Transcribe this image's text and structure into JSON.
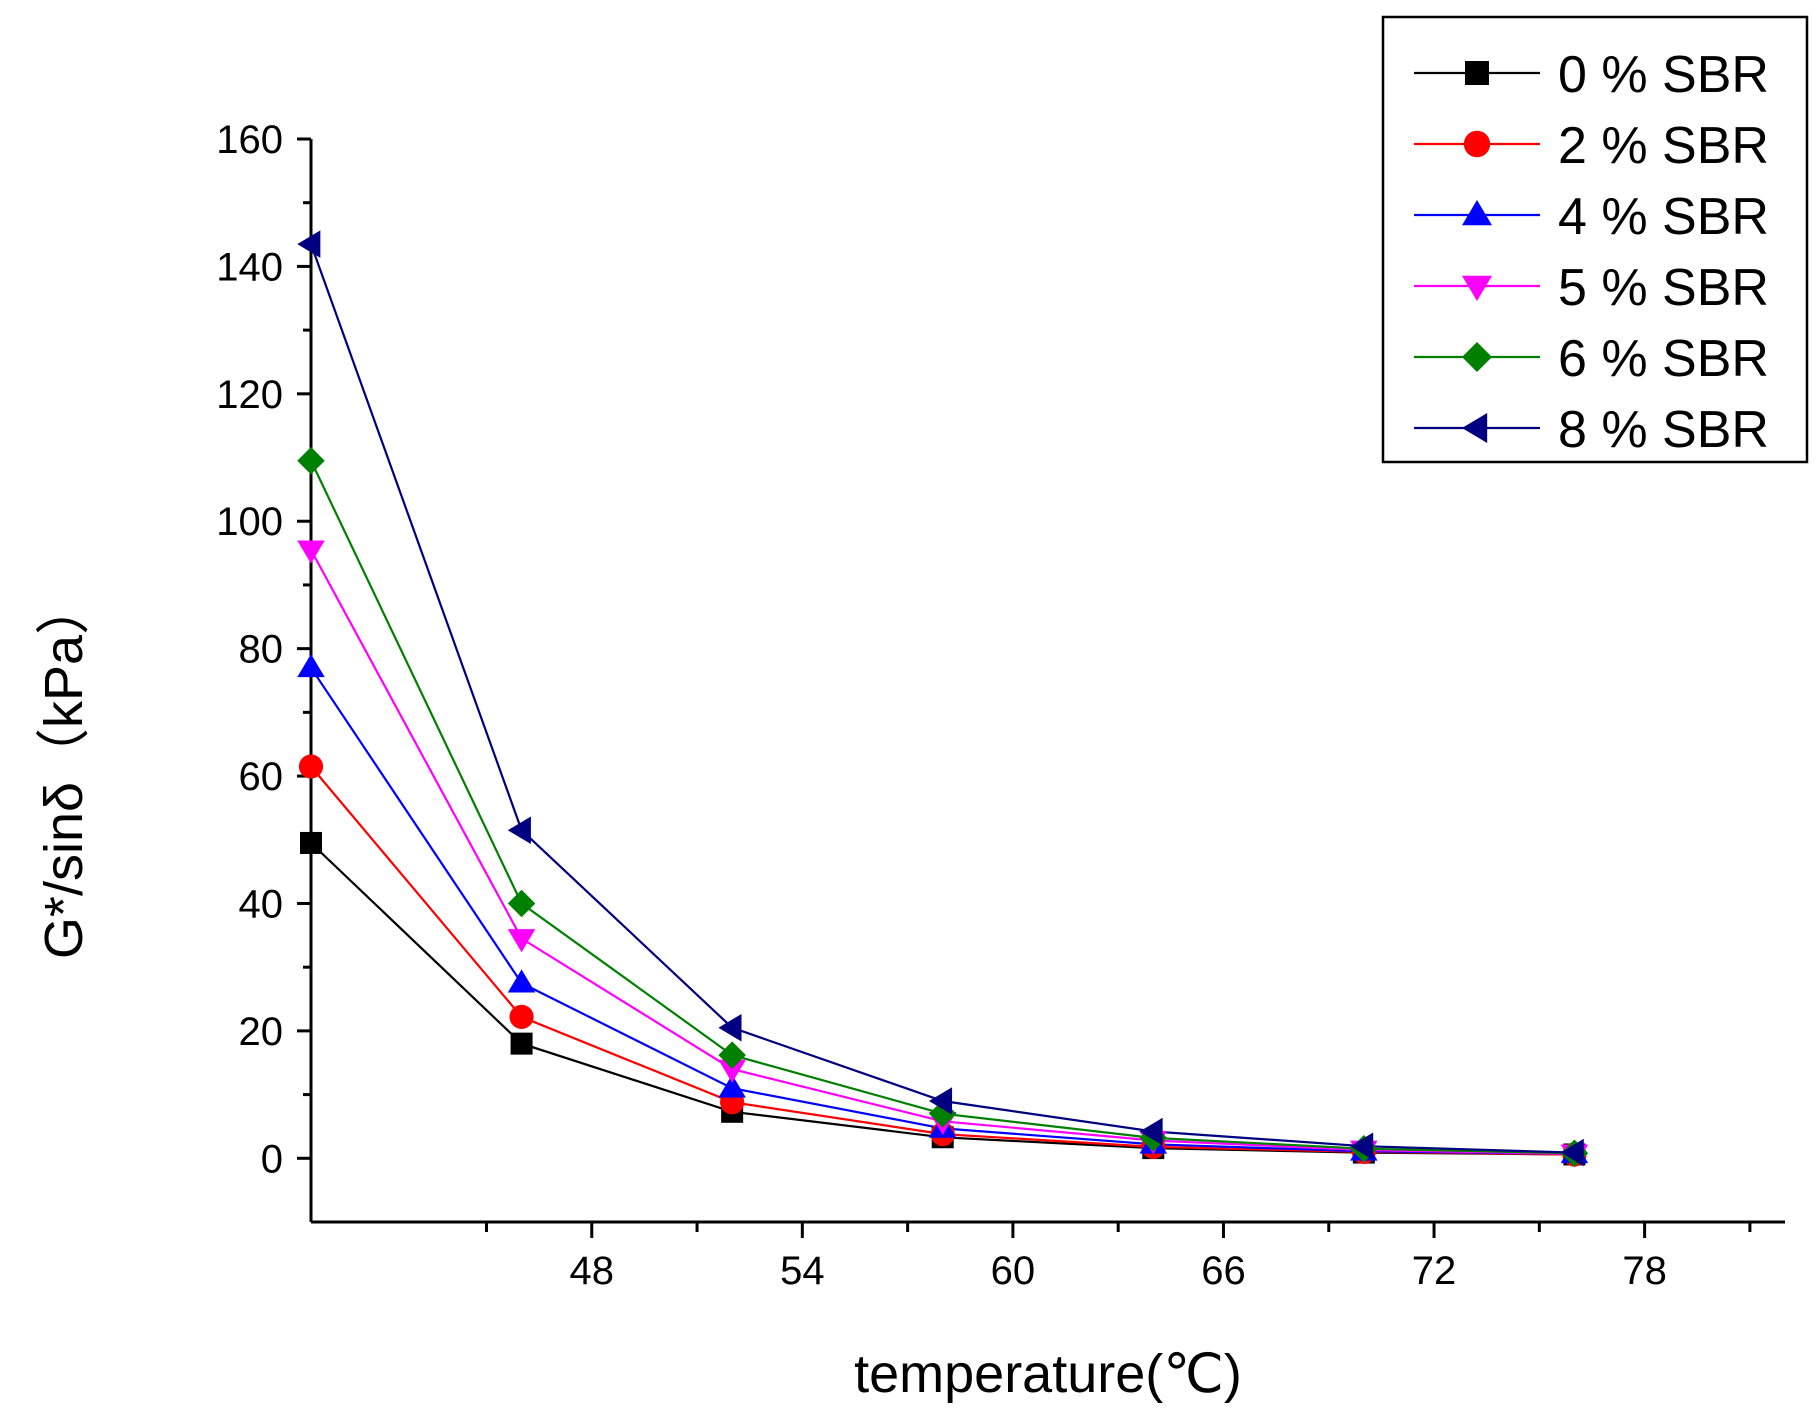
{
  "chart_data": {
    "type": "line",
    "title": "",
    "xlabel": "temperature(℃)",
    "ylabel": "G*/sinδ（kPa）",
    "xlim": [
      40,
      82
    ],
    "ylim": [
      -10,
      160
    ],
    "xticks": [
      48,
      54,
      60,
      66,
      72,
      78
    ],
    "yticks": [
      0,
      20,
      40,
      60,
      80,
      100,
      120,
      140,
      160
    ],
    "x": [
      40,
      46,
      52,
      58,
      64,
      70,
      76
    ],
    "legend_position": "top-right",
    "series": [
      {
        "name": "0 % SBR",
        "color": "#000000",
        "marker": "square",
        "values": [
          49.5,
          18.0,
          7.3,
          3.3,
          1.6,
          0.9,
          0.6
        ]
      },
      {
        "name": "2 % SBR",
        "color": "#ff0000",
        "marker": "circle",
        "values": [
          61.5,
          22.2,
          8.8,
          3.8,
          1.8,
          1.0,
          0.6
        ]
      },
      {
        "name": "4 % SBR",
        "color": "#0000ff",
        "marker": "triangle-up",
        "values": [
          77.0,
          27.5,
          11.0,
          4.7,
          2.2,
          1.1,
          0.7
        ]
      },
      {
        "name": "5 % SBR",
        "color": "#ff00ff",
        "marker": "triangle-down",
        "values": [
          95.5,
          34.5,
          14.0,
          5.8,
          2.8,
          1.3,
          0.7
        ]
      },
      {
        "name": "6 % SBR",
        "color": "#008000",
        "marker": "diamond",
        "values": [
          109.5,
          40.0,
          16.2,
          7.0,
          3.2,
          1.5,
          0.8
        ]
      },
      {
        "name": "8 % SBR",
        "color": "#000080",
        "marker": "triangle-left",
        "values": [
          143.5,
          51.5,
          20.5,
          9.0,
          4.2,
          1.9,
          0.9
        ]
      }
    ]
  }
}
